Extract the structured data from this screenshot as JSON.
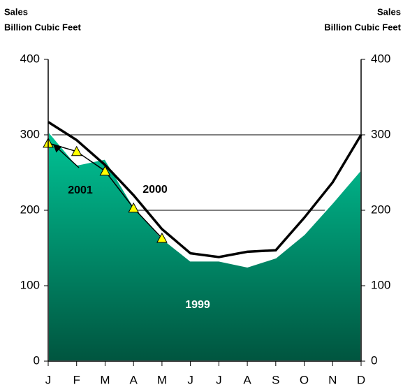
{
  "chart_data": {
    "type": "line",
    "y_label": [
      "Sales",
      "Billion Cubic Feet"
    ],
    "y2_label": [
      "Sales",
      "Billion Cubic Feet"
    ],
    "categories": [
      "J",
      "F",
      "M",
      "A",
      "M",
      "J",
      "J",
      "A",
      "S",
      "O",
      "N",
      "D"
    ],
    "series": [
      {
        "name": "1999",
        "style": "area",
        "color": "#00a27c",
        "values": [
          305,
          260,
          268,
          205,
          163,
          133,
          133,
          125,
          137,
          168,
          210,
          254
        ]
      },
      {
        "name": "2000",
        "style": "line",
        "color": "#000000",
        "values": [
          317,
          293,
          260,
          220,
          175,
          143,
          138,
          145,
          147,
          190,
          237,
          300
        ]
      },
      {
        "name": "2001",
        "style": "triangles",
        "color": "#ffff00",
        "values": [
          289,
          278,
          252,
          203,
          163,
          null,
          null,
          null,
          null,
          null,
          null,
          null
        ]
      }
    ],
    "ylim": [
      0,
      400
    ],
    "yticks": [
      0,
      100,
      200,
      300,
      400
    ],
    "y2lim": [
      0,
      400
    ],
    "y2ticks": [
      0,
      100,
      200,
      300,
      400
    ],
    "grid": true
  }
}
